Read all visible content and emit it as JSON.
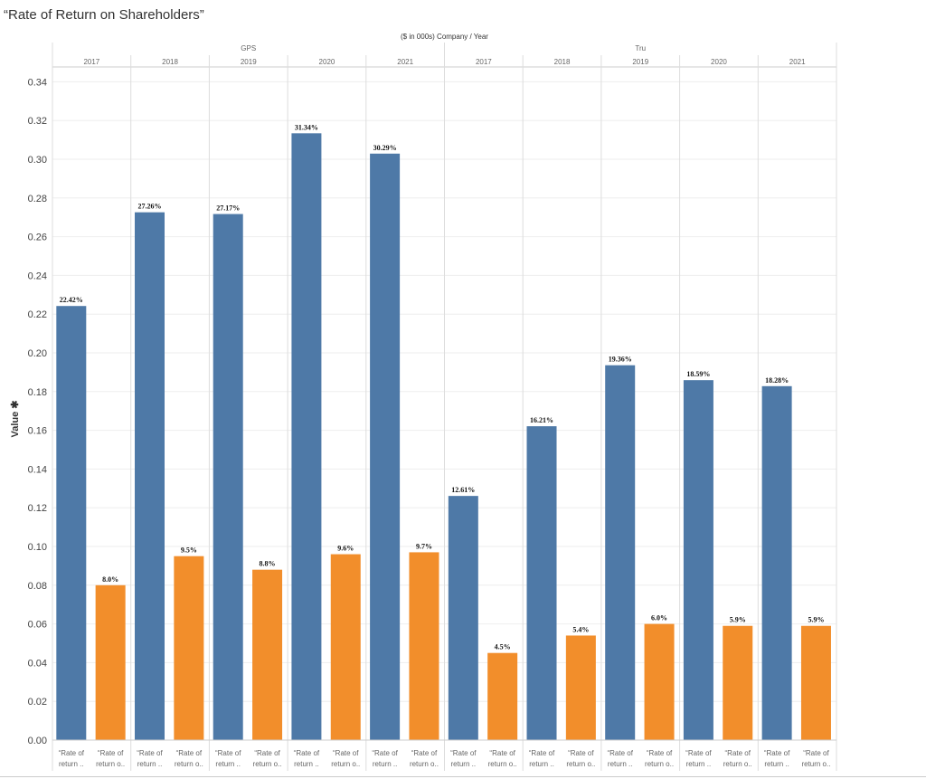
{
  "title": "“Rate of Return on Shareholders”",
  "chart_data": {
    "type": "bar",
    "header_label": "($ in 000s) Company / Year",
    "ylabel": "Value",
    "ylim": [
      0,
      0.35
    ],
    "yticks": [
      "0.00",
      "0.02",
      "0.04",
      "0.06",
      "0.08",
      "0.10",
      "0.12",
      "0.14",
      "0.16",
      "0.18",
      "0.20",
      "0.22",
      "0.24",
      "0.26",
      "0.28",
      "0.30",
      "0.32",
      "0.34"
    ],
    "ytick_values": [
      0,
      0.02,
      0.04,
      0.06,
      0.08,
      0.1,
      0.12,
      0.14,
      0.16,
      0.18,
      0.2,
      0.22,
      0.24,
      0.26,
      0.28,
      0.3,
      0.32,
      0.34
    ],
    "category_labels": [
      "“Rate of return ..",
      "“Rate of return o.."
    ],
    "series_colors": [
      "#4e79a7",
      "#f28e2b"
    ],
    "companies": [
      {
        "name": "GPS",
        "years": [
          {
            "year": "2017",
            "values": [
              0.2242,
              0.08
            ],
            "labels": [
              "22.42%",
              "8.0%"
            ]
          },
          {
            "year": "2018",
            "values": [
              0.2726,
              0.095
            ],
            "labels": [
              "27.26%",
              "9.5%"
            ]
          },
          {
            "year": "2019",
            "values": [
              0.2717,
              0.088
            ],
            "labels": [
              "27.17%",
              "8.8%"
            ]
          },
          {
            "year": "2020",
            "values": [
              0.3134,
              0.096
            ],
            "labels": [
              "31.34%",
              "9.6%"
            ]
          },
          {
            "year": "2021",
            "values": [
              0.3029,
              0.097
            ],
            "labels": [
              "30.29%",
              "9.7%"
            ]
          }
        ]
      },
      {
        "name": "Tru",
        "years": [
          {
            "year": "2017",
            "values": [
              0.1261,
              0.045
            ],
            "labels": [
              "12.61%",
              "4.5%"
            ]
          },
          {
            "year": "2018",
            "values": [
              0.1621,
              0.054
            ],
            "labels": [
              "16.21%",
              "5.4%"
            ]
          },
          {
            "year": "2019",
            "values": [
              0.1936,
              0.06
            ],
            "labels": [
              "19.36%",
              "6.0%"
            ]
          },
          {
            "year": "2020",
            "values": [
              0.1859,
              0.059
            ],
            "labels": [
              "18.59%",
              "5.9%"
            ]
          },
          {
            "year": "2021",
            "values": [
              0.1828,
              0.059
            ],
            "labels": [
              "18.28%",
              "5.9%"
            ]
          }
        ]
      }
    ]
  }
}
